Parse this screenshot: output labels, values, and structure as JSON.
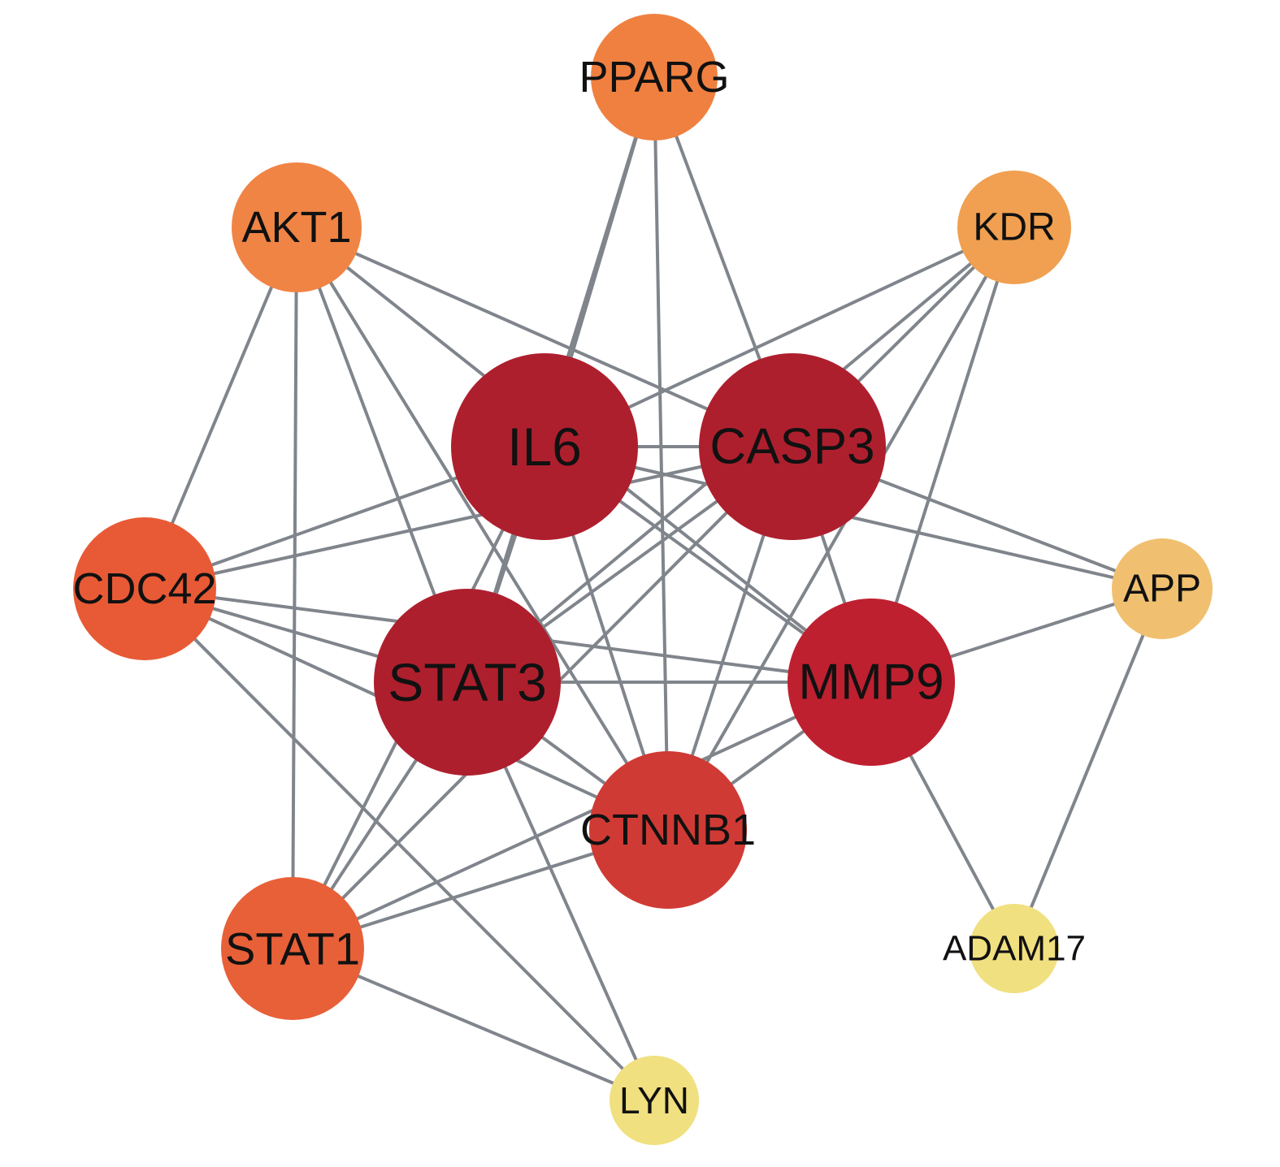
{
  "nodes": [
    {
      "label": "PPARG"
    },
    {
      "label": "AKT1"
    },
    {
      "label": "KDR"
    },
    {
      "label": "IL6"
    },
    {
      "label": "CASP3"
    },
    {
      "label": "CDC42"
    },
    {
      "label": "APP"
    },
    {
      "label": "STAT3"
    },
    {
      "label": "MMP9"
    },
    {
      "label": "CTNNB1"
    },
    {
      "label": "STAT1"
    },
    {
      "label": "ADAM17"
    },
    {
      "label": "LYN"
    }
  ]
}
